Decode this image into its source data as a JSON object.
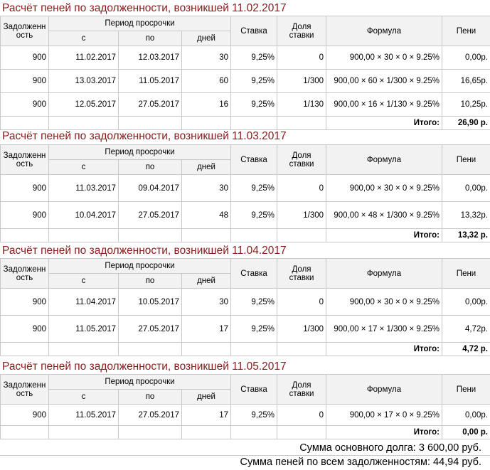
{
  "header": {
    "debt": "Задолженн ость",
    "period": "Период просрочки",
    "from": "с",
    "to": "по",
    "days": "дней",
    "rate": "Ставка",
    "share": "Доля ставки",
    "formula": "Формула",
    "penalty": "Пени"
  },
  "total_label": "Итого:",
  "sections": [
    {
      "title": "Расчёт пеней по задолженности, возникшей 11.02.2017",
      "rows": [
        {
          "debt": "900",
          "from": "11.02.2017",
          "to": "12.03.2017",
          "days": "30",
          "rate": "9,25%",
          "share": "0",
          "formula": "900,00 × 30 × 0 × 9.25%",
          "penalty": "0,00р."
        },
        {
          "debt": "900",
          "from": "13.03.2017",
          "to": "11.05.2017",
          "days": "60",
          "rate": "9,25%",
          "share": "1/300",
          "formula": "900,00 × 60 × 1/300 × 9.25%",
          "penalty": "16,65р."
        },
        {
          "debt": "900",
          "from": "12.05.2017",
          "to": "27.05.2017",
          "days": "16",
          "rate": "9,25%",
          "share": "1/130",
          "formula": "900,00 × 16 × 1/130 × 9.25%",
          "penalty": "10,25р."
        }
      ],
      "total": "26,90 р."
    },
    {
      "title": "Расчёт пеней по задолженности, возникшей 11.03.2017",
      "rows": [
        {
          "debt": "900",
          "from": "11.03.2017",
          "to": "09.04.2017",
          "days": "30",
          "rate": "9,25%",
          "share": "0",
          "formula": "900,00 × 30 × 0 × 9.25%",
          "penalty": "0,00р."
        },
        {
          "debt": "900",
          "from": "10.04.2017",
          "to": "27.05.2017",
          "days": "48",
          "rate": "9,25%",
          "share": "1/300",
          "formula": "900,00 × 48 × 1/300 × 9.25%",
          "penalty": "13,32р."
        }
      ],
      "total": "13,32 р."
    },
    {
      "title": "Расчёт пеней по задолженности, возникшей 11.04.2017",
      "rows": [
        {
          "debt": "900",
          "from": "11.04.2017",
          "to": "10.05.2017",
          "days": "30",
          "rate": "9,25%",
          "share": "0",
          "formula": "900,00 × 30 × 0 × 9.25%",
          "penalty": "0,00р."
        },
        {
          "debt": "900",
          "from": "11.05.2017",
          "to": "27.05.2017",
          "days": "17",
          "rate": "9,25%",
          "share": "1/300",
          "formula": "900,00 × 17 × 1/300 × 9.25%",
          "penalty": "4,72р."
        }
      ],
      "total": "4,72 р."
    },
    {
      "title": "Расчёт пеней по задолженности, возникшей 11.05.2017",
      "rows": [
        {
          "debt": "900",
          "from": "11.05.2017",
          "to": "27.05.2017",
          "days": "17",
          "rate": "9,25%",
          "share": "0",
          "formula": "900,00 × 17 × 0 × 9.25%",
          "penalty": "0,00р."
        }
      ],
      "total": "0,00 р."
    }
  ],
  "summary": {
    "principal": "Сумма основного долга: 3 600,00 руб.",
    "all_penalties": "Сумма пеней по всем задолженностям: 44,94 руб."
  }
}
